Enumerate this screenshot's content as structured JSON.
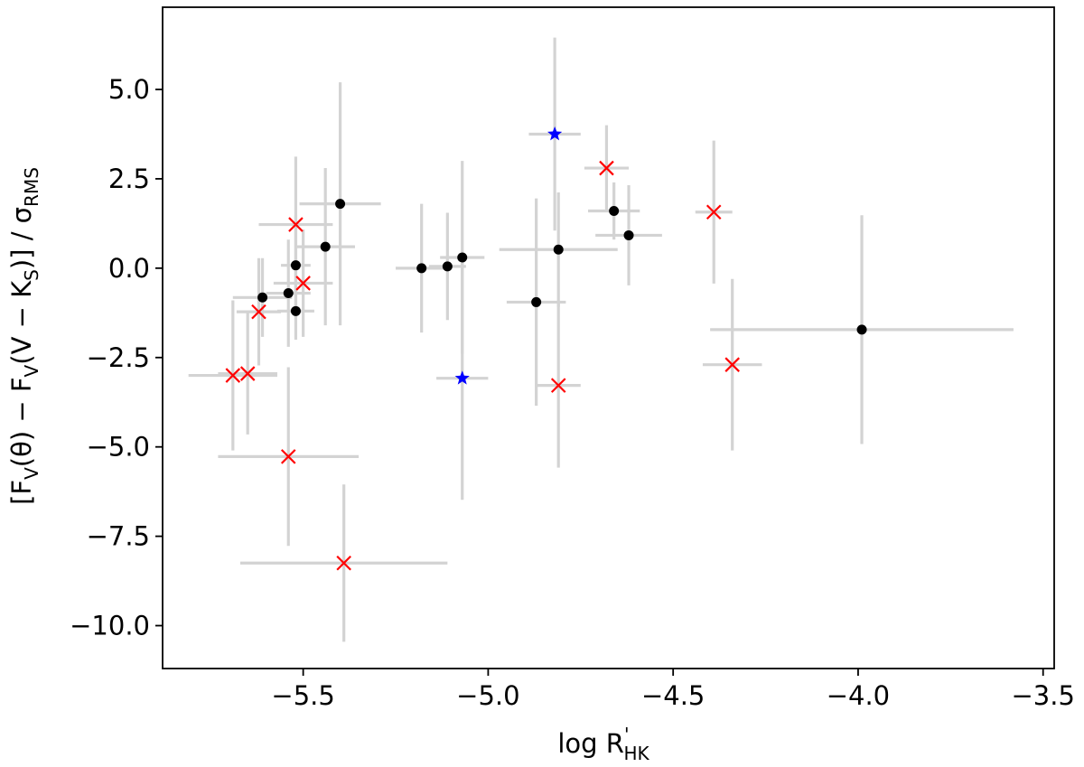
{
  "chart_data": {
    "type": "scatter",
    "title": "",
    "xlabel": {
      "pre": "log R",
      "sup": "'",
      "sub": "HK"
    },
    "ylabel": {
      "t1": "[F",
      "s1": "V",
      "t2": "(θ) − F",
      "s2": "V",
      "t3": "(V − K",
      "s3": "S",
      "t4": ")] / σ",
      "s4": "RMS"
    },
    "xlim": [
      -5.88,
      -3.47
    ],
    "ylim": [
      -11.2,
      7.3
    ],
    "xticks": [
      {
        "value": -5.5,
        "label": "−5.5"
      },
      {
        "value": -5.0,
        "label": "−5.0"
      },
      {
        "value": -4.5,
        "label": "−4.5"
      },
      {
        "value": -4.0,
        "label": "−4.0"
      },
      {
        "value": -3.5,
        "label": "−3.5"
      }
    ],
    "yticks": [
      {
        "value": 5.0,
        "label": "5.0"
      },
      {
        "value": 2.5,
        "label": "2.5"
      },
      {
        "value": 0.0,
        "label": "0.0"
      },
      {
        "value": -2.5,
        "label": "−2.5"
      },
      {
        "value": -5.0,
        "label": "−5.0"
      },
      {
        "value": -7.5,
        "label": "−7.5"
      },
      {
        "value": -10.0,
        "label": "−10.0"
      }
    ],
    "colors": {
      "errorbar": "#d3d3d3",
      "black": "#000000",
      "red": "#ff0000",
      "blue": "#0000ff"
    },
    "series": [
      {
        "name": "black-dots",
        "marker": "circle",
        "color": "#000000",
        "points": [
          {
            "x": -5.61,
            "y": -0.82,
            "xerr": 0.08,
            "yerr": 1.1
          },
          {
            "x": -5.54,
            "y": -0.7,
            "xerr": 0.06,
            "yerr": 1.5
          },
          {
            "x": -5.52,
            "y": 0.08,
            "xerr": 0.04,
            "yerr": 1.4
          },
          {
            "x": -5.52,
            "y": -1.2,
            "xerr": 0.05,
            "yerr": 0.8
          },
          {
            "x": -5.44,
            "y": 0.6,
            "xerr": 0.08,
            "yerr": 2.2
          },
          {
            "x": -5.4,
            "y": 1.8,
            "xerr": 0.11,
            "yerr": 3.4
          },
          {
            "x": -5.18,
            "y": 0.0,
            "xerr": 0.07,
            "yerr": 1.8
          },
          {
            "x": -5.11,
            "y": 0.05,
            "xerr": 0.05,
            "yerr": 1.5
          },
          {
            "x": -5.07,
            "y": 0.3,
            "xerr": 0.06,
            "yerr": 2.7
          },
          {
            "x": -4.87,
            "y": -0.95,
            "xerr": 0.08,
            "yerr": 2.9
          },
          {
            "x": -4.81,
            "y": 0.52,
            "xerr": 0.16,
            "yerr": 1.6
          },
          {
            "x": -4.66,
            "y": 1.6,
            "xerr": 0.07,
            "yerr": 0.8
          },
          {
            "x": -4.62,
            "y": 0.92,
            "xerr": 0.09,
            "yerr": 1.4
          },
          {
            "x": -3.99,
            "y": -1.72,
            "xerr": 0.41,
            "yerr": 3.2
          }
        ]
      },
      {
        "name": "red-crosses",
        "marker": "x",
        "color": "#ff0000",
        "points": [
          {
            "x": -5.69,
            "y": -3.0,
            "xerr": 0.12,
            "yerr": 2.1
          },
          {
            "x": -5.65,
            "y": -2.95,
            "xerr": 0.08,
            "yerr": 1.7
          },
          {
            "x": -5.62,
            "y": -1.22,
            "xerr": 0.06,
            "yerr": 1.5
          },
          {
            "x": -5.52,
            "y": 1.22,
            "xerr": 0.1,
            "yerr": 1.9
          },
          {
            "x": -5.5,
            "y": -0.42,
            "xerr": 0.08,
            "yerr": 1.5
          },
          {
            "x": -5.54,
            "y": -5.27,
            "xerr": 0.19,
            "yerr": 2.5
          },
          {
            "x": -5.39,
            "y": -8.25,
            "xerr": 0.28,
            "yerr": 2.2
          },
          {
            "x": -4.81,
            "y": -3.28,
            "xerr": 0.06,
            "yerr": 2.3
          },
          {
            "x": -4.68,
            "y": 2.8,
            "xerr": 0.06,
            "yerr": 1.2
          },
          {
            "x": -4.39,
            "y": 1.57,
            "xerr": 0.05,
            "yerr": 2.0
          },
          {
            "x": -4.34,
            "y": -2.7,
            "xerr": 0.08,
            "yerr": 2.4
          }
        ]
      },
      {
        "name": "blue-stars",
        "marker": "star",
        "color": "#0000ff",
        "points": [
          {
            "x": -4.82,
            "y": 3.75,
            "xerr": 0.07,
            "yerr": 2.7
          },
          {
            "x": -5.07,
            "y": -3.08,
            "xerr": 0.07,
            "yerr": 3.4
          }
        ]
      }
    ]
  }
}
